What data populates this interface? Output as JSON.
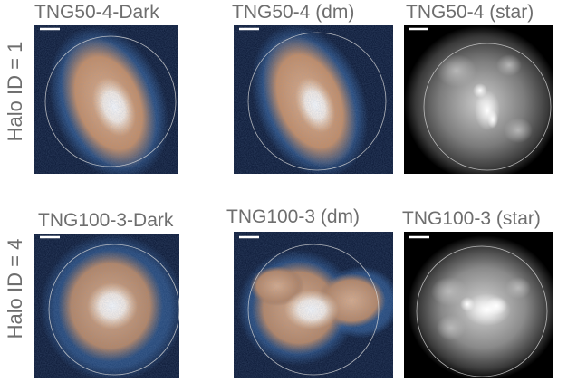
{
  "rows": [
    {
      "label": "Halo ID = 1",
      "panels": [
        {
          "title": "TNG50-4-Dark",
          "kind": "dm"
        },
        {
          "title": "TNG50-4 (dm)",
          "kind": "dm"
        },
        {
          "title": "TNG50-4 (star)",
          "kind": "star"
        }
      ]
    },
    {
      "label": "Halo ID = 4",
      "panels": [
        {
          "title": "TNG100-3-Dark",
          "kind": "dm"
        },
        {
          "title": "TNG100-3 (dm)",
          "kind": "dm"
        },
        {
          "title": "TNG100-3 (star)",
          "kind": "star"
        }
      ]
    }
  ],
  "colors": {
    "dm_background": "#061330",
    "dm_outer": "#2d5f9a",
    "dm_mid": "#c88b5e",
    "dm_core": "#ffffff",
    "star_background": "#000000",
    "star_glow": "#8a8a8a",
    "circle": "#d8d8d8"
  }
}
